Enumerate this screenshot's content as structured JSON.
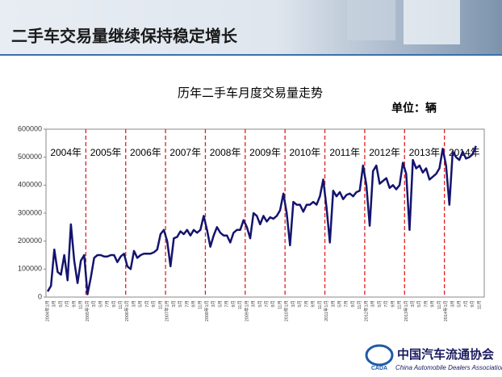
{
  "header": {
    "title": "二手车交易量继续保持稳定增长"
  },
  "footer": {
    "logo": "CADA",
    "org": "中国汽车流通协会",
    "org_en": "China Automobile Dealers Association"
  },
  "chart_data": {
    "type": "line",
    "title": "历年二手车月度交易量走势",
    "unit": "单位：辆",
    "annotations": [
      "2004年",
      "2005年",
      "2006年",
      "2007年",
      "2008年",
      "2009年",
      "2010年",
      "2011年",
      "2012年",
      "2013年",
      "2014年"
    ],
    "categories": [
      "2004年1月",
      null,
      "3月",
      null,
      "5月",
      null,
      "7月",
      null,
      "9月",
      null,
      "11月",
      null,
      "2005年1月",
      null,
      "3月",
      null,
      "5月",
      null,
      "7月",
      null,
      "9月",
      null,
      "11月",
      null,
      "2006年1月",
      null,
      "3月",
      null,
      "5月",
      null,
      "7月",
      null,
      "9月",
      null,
      "11月",
      null,
      "2007年1月",
      null,
      "3月",
      null,
      "5月",
      null,
      "7月",
      null,
      "9月",
      null,
      "11月",
      null,
      "2008年1月",
      null,
      "3月",
      null,
      "5月",
      null,
      "7月",
      null,
      "9月",
      null,
      "11月",
      null,
      "2009年1月",
      null,
      "3月",
      null,
      "5月",
      null,
      "7月",
      null,
      "9月",
      null,
      "11月",
      null,
      "2010年1月",
      null,
      "3月",
      null,
      "5月",
      null,
      "7月",
      null,
      "9月",
      null,
      "11月",
      null,
      "2011年1月",
      null,
      "3月",
      null,
      "5月",
      null,
      "7月",
      null,
      "9月",
      null,
      "11月",
      null,
      "2012年1月",
      null,
      "3月",
      null,
      "5月",
      null,
      "7月",
      null,
      "9月",
      null,
      "11月",
      null,
      "2013年1月",
      null,
      "3月",
      null,
      "5月",
      null,
      "7月",
      null,
      "9月",
      null,
      "11月",
      null,
      "2014年1月",
      null,
      "3月",
      null,
      "5月",
      null,
      "7月",
      null,
      "9月",
      null,
      "11月",
      null
    ],
    "series": [
      {
        "name": "二手车月度交易量",
        "color": "#14146e",
        "values": [
          20000,
          40000,
          170000,
          90000,
          80000,
          150000,
          60000,
          260000,
          130000,
          50000,
          130000,
          150000,
          10000,
          70000,
          140000,
          150000,
          150000,
          145000,
          145000,
          150000,
          150000,
          125000,
          145000,
          155000,
          110000,
          100000,
          165000,
          140000,
          150000,
          155000,
          155000,
          155000,
          160000,
          170000,
          225000,
          240000,
          200000,
          110000,
          210000,
          215000,
          235000,
          225000,
          240000,
          220000,
          240000,
          230000,
          240000,
          290000,
          240000,
          180000,
          220000,
          250000,
          230000,
          220000,
          220000,
          195000,
          230000,
          240000,
          240000,
          275000,
          250000,
          210000,
          300000,
          290000,
          260000,
          290000,
          270000,
          285000,
          280000,
          290000,
          310000,
          370000,
          300000,
          185000,
          340000,
          330000,
          330000,
          305000,
          330000,
          330000,
          340000,
          330000,
          360000,
          420000,
          320000,
          195000,
          380000,
          360000,
          375000,
          350000,
          365000,
          370000,
          360000,
          375000,
          380000,
          470000,
          400000,
          255000,
          450000,
          470000,
          405000,
          415000,
          425000,
          390000,
          400000,
          385000,
          400000,
          480000,
          440000,
          240000,
          490000,
          460000,
          470000,
          445000,
          460000,
          420000,
          430000,
          440000,
          460000,
          530000,
          470000,
          330000,
          520000,
          500000,
          490000,
          520000,
          495000,
          500000,
          510000,
          540000,
          null,
          null
        ]
      }
    ],
    "ylim": [
      0,
      600000
    ],
    "yticks": [
      0,
      100000,
      200000,
      300000,
      400000,
      500000,
      600000
    ],
    "grid": false
  }
}
